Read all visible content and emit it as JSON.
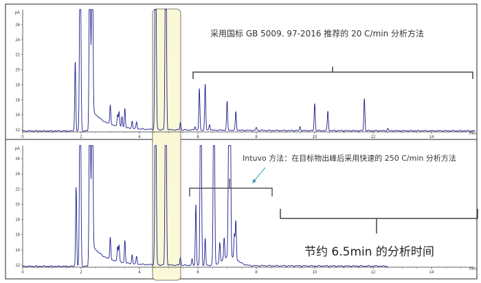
{
  "annotations": {
    "top_method": "采用国标 GB 5009. 97-2016 推荐的 20 C/min 分析方法",
    "bottom_method": "Intuvo 方法：在目标物出峰后采用快速的 250 C/min 分析方法",
    "saving": "节约 6.5min 的分析时间"
  },
  "colors": {
    "trace": "#1a1a8c",
    "highlight": "#fbf8d8",
    "bracket": "#555555",
    "arrow": "#3a9ab8"
  },
  "chart_data": [
    {
      "type": "line",
      "ylabel": "pA",
      "xlabel": "min",
      "xlim": [
        0,
        15.5
      ],
      "ylim": [
        12,
        26
      ],
      "xticks": [
        "0",
        "2",
        "4",
        "6",
        "8",
        "10",
        "12",
        "14"
      ],
      "yticks": [
        "12",
        "14",
        "16",
        "18",
        "20",
        "22",
        "24",
        "26"
      ],
      "trace_end_min": 15.5,
      "peaks": [
        [
          1.8,
          9.2
        ],
        [
          1.97,
          30
        ],
        [
          2.3,
          30
        ],
        [
          2.38,
          30
        ],
        [
          3.0,
          2.6
        ],
        [
          3.25,
          1.6
        ],
        [
          3.3,
          2.0
        ],
        [
          3.4,
          1.4
        ],
        [
          3.5,
          2.6
        ],
        [
          3.75,
          1.0
        ],
        [
          3.9,
          0.9
        ],
        [
          4.55,
          30
        ],
        [
          4.9,
          30
        ],
        [
          5.4,
          1.0
        ],
        [
          5.9,
          0.5
        ],
        [
          6.05,
          5.5
        ],
        [
          6.25,
          6.1
        ],
        [
          6.4,
          0.8
        ],
        [
          7.0,
          3.8
        ],
        [
          7.3,
          2.5
        ],
        [
          8.0,
          0.4
        ],
        [
          9.5,
          0.5
        ],
        [
          10.0,
          3.6
        ],
        [
          10.45,
          2.6
        ],
        [
          11.7,
          4.3
        ],
        [
          12.5,
          0.3
        ]
      ]
    },
    {
      "type": "line",
      "ylabel": "pA",
      "xlabel": "min",
      "xlim": [
        0,
        15.5
      ],
      "ylim": [
        12,
        26
      ],
      "xticks": [
        "0",
        "2",
        "4",
        "6",
        "8",
        "10",
        "12",
        "14"
      ],
      "yticks": [
        "12",
        "14",
        "16",
        "18",
        "20",
        "22",
        "24",
        "26"
      ],
      "trace_end_min": 12.5,
      "peaks": [
        [
          1.83,
          10.5
        ],
        [
          1.97,
          30
        ],
        [
          2.3,
          30
        ],
        [
          2.38,
          30
        ],
        [
          3.0,
          3.0
        ],
        [
          3.25,
          2.0
        ],
        [
          3.3,
          2.2
        ],
        [
          3.5,
          3.0
        ],
        [
          3.75,
          1.2
        ],
        [
          3.9,
          1.0
        ],
        [
          4.55,
          30
        ],
        [
          4.9,
          30
        ],
        [
          5.4,
          1.0
        ],
        [
          5.8,
          0.8
        ],
        [
          5.93,
          8.0
        ],
        [
          6.1,
          30
        ],
        [
          6.25,
          3.5
        ],
        [
          6.55,
          30
        ],
        [
          6.75,
          2.5
        ],
        [
          6.9,
          2.8
        ],
        [
          7.05,
          13.5
        ],
        [
          7.1,
          30
        ],
        [
          7.25,
          3.0
        ],
        [
          7.3,
          5.0
        ]
      ]
    }
  ]
}
